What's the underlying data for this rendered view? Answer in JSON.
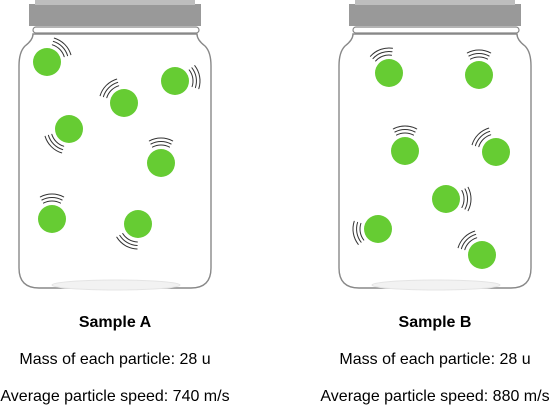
{
  "colors": {
    "particle": "#66cc33",
    "lid": "#999999",
    "jar_outline": "#888888",
    "motion_lines": "#333333"
  },
  "samples": [
    {
      "title": "Sample A",
      "mass_text": "Mass of each particle: 28 u",
      "speed_text": "Average particle speed: 740 m/s",
      "particle_count": 7
    },
    {
      "title": "Sample B",
      "mass_text": "Mass of each particle: 28 u",
      "speed_text": "Average particle speed: 880 m/s",
      "particle_count": 7
    }
  ]
}
